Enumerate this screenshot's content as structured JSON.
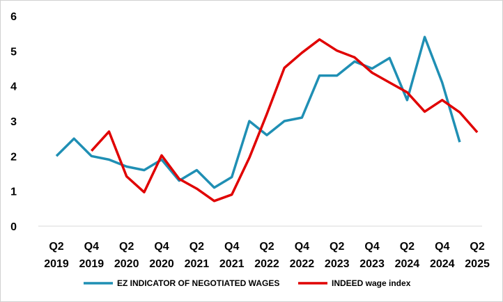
{
  "chart_data": {
    "type": "line",
    "title": "",
    "xlabel": "",
    "ylabel": "",
    "ylim": [
      0,
      6
    ],
    "yticks": [
      "0",
      "1",
      "2",
      "3",
      "4",
      "5",
      "6"
    ],
    "x_tick_labels": [
      {
        "q": "Q2",
        "y": "2019"
      },
      {
        "q": "Q4",
        "y": "2019"
      },
      {
        "q": "Q2",
        "y": "2020"
      },
      {
        "q": "Q4",
        "y": "2020"
      },
      {
        "q": "Q2",
        "y": "2021"
      },
      {
        "q": "Q4",
        "y": "2021"
      },
      {
        "q": "Q2",
        "y": "2022"
      },
      {
        "q": "Q4",
        "y": "2022"
      },
      {
        "q": "Q2",
        "y": "2023"
      },
      {
        "q": "Q4",
        "y": "2023"
      },
      {
        "q": "Q2",
        "y": "2024"
      },
      {
        "q": "Q4",
        "y": "2024"
      },
      {
        "q": "Q2",
        "y": "2025"
      }
    ],
    "x_periods": [
      "2019 Q2",
      "2019 Q3",
      "2019 Q4",
      "2020 Q1",
      "2020 Q2",
      "2020 Q3",
      "2020 Q4",
      "2021 Q1",
      "2021 Q2",
      "2021 Q3",
      "2021 Q4",
      "2022 Q1",
      "2022 Q2",
      "2022 Q3",
      "2022 Q4",
      "2023 Q1",
      "2023 Q2",
      "2023 Q3",
      "2023 Q4",
      "2024 Q1",
      "2024 Q2",
      "2024 Q3",
      "2024 Q4",
      "2025 Q1",
      "2025 Q2"
    ],
    "grid": false,
    "legend_position": "bottom",
    "series": [
      {
        "name": "EZ INDICATOR OF NEGOTIATED WAGES",
        "color": "#1f8fb4",
        "values": [
          2.0,
          2.5,
          2.0,
          1.9,
          1.7,
          1.6,
          1.9,
          1.3,
          1.6,
          1.1,
          1.4,
          3.0,
          2.6,
          3.0,
          3.1,
          4.3,
          4.3,
          4.7,
          4.5,
          4.8,
          3.6,
          5.4,
          4.1,
          2.4,
          null
        ]
      },
      {
        "name": "INDEED wage index",
        "color": "#e00000",
        "values": [
          null,
          null,
          2.15,
          2.7,
          1.42,
          0.97,
          2.02,
          1.35,
          1.07,
          0.72,
          0.9,
          1.95,
          3.2,
          4.52,
          4.95,
          5.33,
          5.01,
          4.82,
          4.38,
          4.1,
          3.82,
          3.27,
          3.6,
          3.25,
          2.68
        ]
      }
    ]
  }
}
